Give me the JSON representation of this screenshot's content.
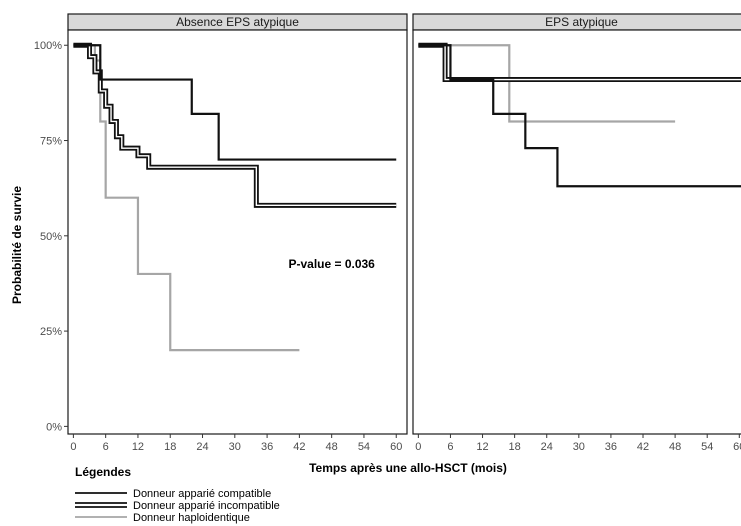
{
  "chart_data": {
    "type": "line",
    "subtype": "kaplan-meier step",
    "xlabel": "Temps après une allo-HSCT (mois)",
    "ylabel": "Probabilité de survie",
    "xlim": [
      -1,
      62
    ],
    "ylim": [
      -0.02,
      1.04
    ],
    "x_ticks": [
      0,
      6,
      12,
      18,
      24,
      30,
      36,
      42,
      48,
      54,
      60
    ],
    "y_ticks": [
      {
        "value": 0,
        "label": "0%"
      },
      {
        "value": 0.25,
        "label": "25%"
      },
      {
        "value": 0.5,
        "label": "50%"
      },
      {
        "value": 0.75,
        "label": "75%"
      },
      {
        "value": 1,
        "label": "100%"
      }
    ],
    "legend_title": "Légendes",
    "legend_position": "bottom-left",
    "series_styles": [
      {
        "name": "Donneur apparié compatible",
        "style": "single",
        "color": "#111111"
      },
      {
        "name": "Donneur apparié incompatible",
        "style": "double",
        "color": "#111111"
      },
      {
        "name": "Donneur haploidentique",
        "style": "single",
        "color": "#a6a6a6"
      }
    ],
    "panels": [
      {
        "title": "Absence EPS atypique",
        "annotation": {
          "text": "P-value = 0.036",
          "x": 48,
          "y": 0.415
        },
        "series": [
          {
            "name": "Donneur apparié compatible",
            "x": [
              0,
              4,
              5,
              22,
              27,
              60
            ],
            "y": [
              1.0,
              1.0,
              0.91,
              0.82,
              0.7,
              0.7
            ]
          },
          {
            "name": "Donneur apparié incompatible",
            "x": [
              0,
              3,
              4,
              5,
              6,
              7,
              8,
              9,
              12,
              14,
              34,
              60
            ],
            "y": [
              1.0,
              0.97,
              0.93,
              0.88,
              0.84,
              0.8,
              0.76,
              0.73,
              0.71,
              0.68,
              0.58,
              0.58
            ]
          },
          {
            "name": "Donneur haploidentique",
            "x": [
              0,
              4,
              5,
              6,
              12,
              18,
              42
            ],
            "y": [
              1.0,
              0.96,
              0.8,
              0.6,
              0.4,
              0.2,
              0.2
            ]
          }
        ]
      },
      {
        "title": "EPS atypique",
        "series": [
          {
            "name": "Donneur apparié compatible",
            "x": [
              0,
              4,
              6,
              14,
              20,
              26,
              62
            ],
            "y": [
              1.0,
              1.0,
              0.91,
              0.82,
              0.73,
              0.63,
              0.63
            ]
          },
          {
            "name": "Donneur apparié incompatible",
            "x": [
              0,
              5,
              8,
              62
            ],
            "y": [
              1.0,
              0.91,
              0.91,
              0.91
            ]
          },
          {
            "name": "Donneur haploidentique",
            "x": [
              0,
              17,
              48
            ],
            "y": [
              1.0,
              0.8,
              0.8
            ]
          }
        ]
      }
    ]
  }
}
